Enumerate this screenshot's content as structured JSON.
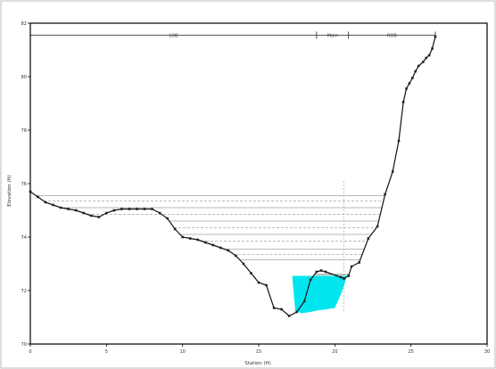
{
  "chart_data": {
    "type": "line",
    "title": "",
    "xlabel": "Station (ft)",
    "ylabel": "Elevation (ft)",
    "x_ticks": [
      "0",
      "5",
      "10",
      "15",
      "20",
      "25",
      "30"
    ],
    "y_ticks": [
      "70",
      "72",
      "74",
      "76",
      "78",
      "80",
      "82"
    ],
    "xlim": [
      0,
      30
    ],
    "ylim": [
      70,
      82
    ],
    "grid": false,
    "legend": "none",
    "colors": {
      "ground": "#111111",
      "points": "#222222",
      "water_fill": "#00e5ee",
      "water_lines": "#777777",
      "channel_lines": "#555555",
      "frame": "#000000"
    },
    "reaches": {
      "labels": [
        "LOB",
        "Main",
        "ROB"
      ],
      "boundaries": [
        0,
        18.8,
        20.9,
        26.6
      ]
    },
    "ground_series": {
      "name": "Ground",
      "x": [
        0,
        0.5,
        1.0,
        1.5,
        2.0,
        2.5,
        3.0,
        3.5,
        4.0,
        4.5,
        5.0,
        5.5,
        6.0,
        6.5,
        7.0,
        7.5,
        8.0,
        8.5,
        9.0,
        9.5,
        10.0,
        10.5,
        11.0,
        11.5,
        12.0,
        12.5,
        13.0,
        13.5,
        14.0,
        14.5,
        15.0,
        15.5,
        16.0,
        16.5,
        17.0,
        17.5,
        18.0,
        18.4,
        18.8,
        19.1,
        19.4,
        20.4,
        20.6,
        20.9,
        21.1,
        21.6,
        22.2,
        22.8,
        23.3,
        23.8,
        24.2,
        24.5,
        24.7,
        24.9,
        25.1,
        25.3,
        25.5,
        25.8,
        26.0,
        26.2,
        26.4,
        26.6
      ],
      "y": [
        75.7,
        75.5,
        75.3,
        75.2,
        75.1,
        75.05,
        75.0,
        74.9,
        74.8,
        74.75,
        74.9,
        75.0,
        75.05,
        75.05,
        75.05,
        75.05,
        75.05,
        74.9,
        74.7,
        74.3,
        74.0,
        73.95,
        73.9,
        73.8,
        73.7,
        73.6,
        73.5,
        73.3,
        73.0,
        72.65,
        72.3,
        72.2,
        71.35,
        71.3,
        71.05,
        71.2,
        71.6,
        72.4,
        72.7,
        72.75,
        72.7,
        72.5,
        72.45,
        72.55,
        72.9,
        73.05,
        73.95,
        74.4,
        75.6,
        76.45,
        77.6,
        79.05,
        79.55,
        79.75,
        79.95,
        80.2,
        80.4,
        80.55,
        80.7,
        80.8,
        81.05,
        81.5
      ]
    },
    "water_fill_polygon": {
      "x": [
        17.2,
        20.8,
        20.5,
        20.0,
        19.2,
        18.8,
        18.4,
        17.8,
        17.4,
        17.2
      ],
      "y": [
        72.55,
        72.55,
        72.0,
        71.35,
        71.28,
        71.25,
        71.2,
        71.15,
        71.25,
        72.55
      ]
    },
    "water_surface_lines": {
      "channel_span": [
        17.0,
        20.9
      ],
      "channel_elevations": [
        72.4,
        72.6,
        72.8,
        73.0
      ],
      "overbank_elevations": [
        73.15,
        73.35,
        73.55,
        73.85,
        74.1,
        74.35,
        74.6,
        74.85,
        75.1,
        75.35,
        75.55,
        75.75
      ]
    }
  }
}
